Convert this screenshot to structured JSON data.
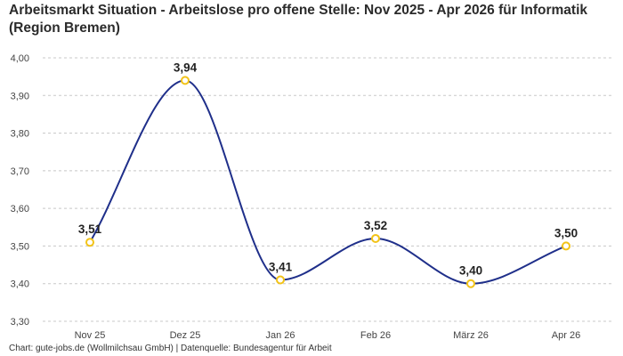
{
  "title": "Arbeitsmarkt Situation - Arbeitslose pro offene Stelle: Nov 2025 - Apr 2026 für Informatik (Region Bremen)",
  "footer": "Chart: gute-jobs.de (Wollmilchsau GmbH) | Datenquelle: Bundesagentur für Arbeit",
  "chart_data": {
    "type": "line",
    "categories": [
      "Nov 25",
      "Dez 25",
      "Jan 26",
      "Feb 26",
      "März 26",
      "Apr 26"
    ],
    "values": [
      3.51,
      3.94,
      3.41,
      3.52,
      3.4,
      3.5
    ],
    "data_labels": [
      "3,51",
      "3,94",
      "3,41",
      "3,52",
      "3,40",
      "3,50"
    ],
    "y_ticks": [
      "3,30",
      "3,40",
      "3,50",
      "3,60",
      "3,70",
      "3,80",
      "3,90",
      "4,00"
    ],
    "ylim": [
      3.3,
      4.0
    ],
    "xlabel": "",
    "ylabel": "",
    "grid": true,
    "line_color": "#1f2f8a",
    "marker_color": "#f2c318"
  }
}
